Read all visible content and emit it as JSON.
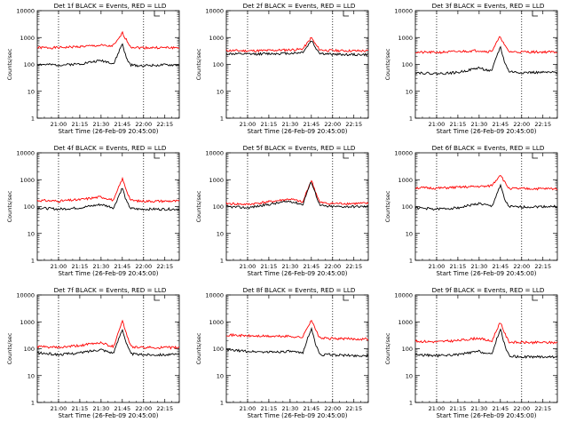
{
  "chart_data": [
    {
      "type": "line",
      "title": "Det 1f BLACK = Events, RED = LLD",
      "ylabel": "Counts/sec",
      "xlabel": "Start Time (26-Feb-09 20:45:00)",
      "x_ticks": [
        "21:00",
        "21:15",
        "21:30",
        "21:45",
        "22:00",
        "22:15"
      ],
      "y_ticks": [
        "1",
        "10",
        "100",
        "1000",
        "10000"
      ],
      "ylim": [
        1,
        10000
      ],
      "yscale": "log",
      "x_hours": [
        20.75,
        21.0,
        21.25,
        21.5,
        21.6,
        21.65,
        21.7,
        21.75,
        21.8,
        21.85,
        21.95,
        22.25,
        22.42
      ],
      "vlines_hours": [
        21.0,
        22.0
      ],
      "series": [
        {
          "color": "#ff0000",
          "values": [
            420,
            420,
            460,
            510,
            470,
            520,
            800,
            1500,
            800,
            450,
            420,
            420,
            420
          ]
        },
        {
          "color": "#000000",
          "values": [
            100,
            95,
            105,
            140,
            120,
            105,
            250,
            600,
            160,
            95,
            90,
            95,
            95
          ]
        }
      ]
    },
    {
      "type": "line",
      "title": "Det 2f BLACK = Events, RED = LLD",
      "ylabel": "Counts/sec",
      "xlabel": "Start Time (26-Feb-09 20:45:00)",
      "x_ticks": [
        "21:00",
        "21:15",
        "21:30",
        "21:45",
        "22:00",
        "22:15"
      ],
      "y_ticks": [
        "1",
        "10",
        "100",
        "1000",
        "10000"
      ],
      "ylim": [
        1,
        10000
      ],
      "yscale": "log",
      "x_hours": [
        20.75,
        21.0,
        21.25,
        21.5,
        21.6,
        21.65,
        21.7,
        21.75,
        21.8,
        21.85,
        21.95,
        22.25,
        22.42
      ],
      "vlines_hours": [
        21.0,
        22.0
      ],
      "series": [
        {
          "color": "#ff0000",
          "values": [
            330,
            320,
            330,
            350,
            360,
            380,
            600,
            1000,
            550,
            350,
            330,
            320,
            320
          ]
        },
        {
          "color": "#000000",
          "values": [
            250,
            240,
            250,
            260,
            270,
            290,
            450,
            800,
            420,
            260,
            240,
            230,
            230
          ]
        }
      ]
    },
    {
      "type": "line",
      "title": "Det 3f BLACK = Events, RED = LLD",
      "ylabel": "Counts/sec",
      "xlabel": "Start Time (26-Feb-09 20:45:00)",
      "x_ticks": [
        "21:00",
        "21:15",
        "21:30",
        "21:45",
        "22:00",
        "22:15"
      ],
      "y_ticks": [
        "1",
        "10",
        "100",
        "1000",
        "10000"
      ],
      "ylim": [
        1,
        10000
      ],
      "yscale": "log",
      "x_hours": [
        20.75,
        21.0,
        21.25,
        21.5,
        21.6,
        21.65,
        21.7,
        21.75,
        21.8,
        21.85,
        21.95,
        22.25,
        22.42
      ],
      "vlines_hours": [
        21.0,
        22.0
      ],
      "series": [
        {
          "color": "#ff0000",
          "values": [
            280,
            280,
            300,
            330,
            300,
            320,
            600,
            1100,
            500,
            300,
            290,
            290,
            290
          ]
        },
        {
          "color": "#000000",
          "values": [
            50,
            45,
            50,
            75,
            60,
            55,
            180,
            450,
            120,
            55,
            50,
            50,
            50
          ]
        }
      ]
    },
    {
      "type": "line",
      "title": "Det 4f BLACK = Events, RED = LLD",
      "ylabel": "Counts/sec",
      "xlabel": "Start Time (26-Feb-09 20:45:00)",
      "x_ticks": [
        "21:00",
        "21:15",
        "21:30",
        "21:45",
        "22:00",
        "22:15"
      ],
      "y_ticks": [
        "1",
        "10",
        "100",
        "1000",
        "10000"
      ],
      "ylim": [
        1,
        10000
      ],
      "yscale": "log",
      "x_hours": [
        20.75,
        21.0,
        21.25,
        21.5,
        21.6,
        21.65,
        21.7,
        21.75,
        21.8,
        21.85,
        21.95,
        22.25,
        22.42
      ],
      "vlines_hours": [
        21.0,
        22.0
      ],
      "series": [
        {
          "color": "#ff0000",
          "values": [
            170,
            160,
            180,
            230,
            190,
            170,
            450,
            1100,
            400,
            170,
            160,
            160,
            160
          ]
        },
        {
          "color": "#000000",
          "values": [
            90,
            80,
            90,
            120,
            100,
            90,
            220,
            500,
            150,
            85,
            80,
            80,
            80
          ]
        }
      ]
    },
    {
      "type": "line",
      "title": "Det 5f BLACK = Events, RED = LLD",
      "ylabel": "Counts/sec",
      "xlabel": "Start Time (26-Feb-09 20:45:00)",
      "x_ticks": [
        "21:00",
        "21:15",
        "21:30",
        "21:45",
        "22:00",
        "22:15"
      ],
      "y_ticks": [
        "1",
        "10",
        "100",
        "1000",
        "10000"
      ],
      "ylim": [
        1,
        10000
      ],
      "yscale": "log",
      "x_hours": [
        20.75,
        21.0,
        21.25,
        21.5,
        21.6,
        21.65,
        21.7,
        21.75,
        21.8,
        21.85,
        21.95,
        22.25,
        22.42
      ],
      "vlines_hours": [
        21.0,
        22.0
      ],
      "series": [
        {
          "color": "#ff0000",
          "values": [
            130,
            120,
            150,
            190,
            160,
            140,
            400,
            950,
            350,
            140,
            130,
            130,
            130
          ]
        },
        {
          "color": "#000000",
          "values": [
            100,
            90,
            120,
            160,
            130,
            120,
            350,
            850,
            300,
            110,
            100,
            100,
            100
          ]
        }
      ]
    },
    {
      "type": "line",
      "title": "Det 6f BLACK = Events, RED = LLD",
      "ylabel": "Counts/sec",
      "xlabel": "Start Time (26-Feb-09 20:45:00)",
      "x_ticks": [
        "21:00",
        "21:15",
        "21:30",
        "21:45",
        "22:00",
        "22:15"
      ],
      "y_ticks": [
        "1",
        "10",
        "100",
        "1000",
        "10000"
      ],
      "ylim": [
        1,
        10000
      ],
      "yscale": "log",
      "x_hours": [
        20.75,
        21.0,
        21.25,
        21.5,
        21.6,
        21.65,
        21.7,
        21.75,
        21.8,
        21.85,
        21.95,
        22.25,
        22.42
      ],
      "vlines_hours": [
        21.0,
        22.0
      ],
      "series": [
        {
          "color": "#ff0000",
          "values": [
            500,
            480,
            520,
            560,
            560,
            620,
            950,
            1600,
            800,
            480,
            460,
            460,
            460
          ]
        },
        {
          "color": "#000000",
          "values": [
            90,
            80,
            90,
            130,
            110,
            100,
            250,
            650,
            180,
            100,
            95,
            100,
            100
          ]
        }
      ]
    },
    {
      "type": "line",
      "title": "Det 7f BLACK = Events, RED = LLD",
      "ylabel": "Counts/sec",
      "xlabel": "Start Time (26-Feb-09 20:45:00)",
      "x_ticks": [
        "21:00",
        "21:15",
        "21:30",
        "21:45",
        "22:00",
        "22:15"
      ],
      "y_ticks": [
        "1",
        "10",
        "100",
        "1000",
        "10000"
      ],
      "ylim": [
        1,
        10000
      ],
      "yscale": "log",
      "x_hours": [
        20.75,
        21.0,
        21.25,
        21.5,
        21.6,
        21.65,
        21.7,
        21.75,
        21.8,
        21.85,
        21.95,
        22.25,
        22.42
      ],
      "vlines_hours": [
        21.0,
        22.0
      ],
      "series": [
        {
          "color": "#ff0000",
          "values": [
            120,
            110,
            130,
            170,
            130,
            120,
            400,
            1100,
            350,
            120,
            110,
            110,
            110
          ]
        },
        {
          "color": "#000000",
          "values": [
            70,
            60,
            70,
            95,
            75,
            70,
            200,
            550,
            150,
            65,
            60,
            60,
            60
          ]
        }
      ]
    },
    {
      "type": "line",
      "title": "Det 8f BLACK = Events, RED = LLD",
      "ylabel": "Counts/sec",
      "xlabel": "Start Time (26-Feb-09 20:45:00)",
      "x_ticks": [
        "21:00",
        "21:15",
        "21:30",
        "21:45",
        "22:00",
        "22:15"
      ],
      "y_ticks": [
        "1",
        "10",
        "100",
        "1000",
        "10000"
      ],
      "ylim": [
        1,
        10000
      ],
      "yscale": "log",
      "x_hours": [
        20.75,
        21.0,
        21.25,
        21.5,
        21.6,
        21.65,
        21.7,
        21.75,
        21.8,
        21.85,
        21.95,
        22.25,
        22.42
      ],
      "vlines_hours": [
        21.0,
        22.0
      ],
      "series": [
        {
          "color": "#ff0000",
          "values": [
            330,
            300,
            290,
            290,
            270,
            270,
            600,
            1200,
            500,
            250,
            240,
            230,
            230
          ]
        },
        {
          "color": "#000000",
          "values": [
            90,
            80,
            75,
            80,
            70,
            70,
            220,
            550,
            150,
            60,
            60,
            55,
            55
          ]
        }
      ]
    },
    {
      "type": "line",
      "title": "Det 9f BLACK = Events, RED = LLD",
      "ylabel": "Counts/sec",
      "xlabel": "Start Time (26-Feb-09 20:45:00)",
      "x_ticks": [
        "21:00",
        "21:15",
        "21:30",
        "21:45",
        "22:00",
        "22:15"
      ],
      "y_ticks": [
        "1",
        "10",
        "100",
        "1000",
        "10000"
      ],
      "ylim": [
        1,
        10000
      ],
      "yscale": "log",
      "x_hours": [
        20.75,
        21.0,
        21.25,
        21.5,
        21.6,
        21.65,
        21.7,
        21.75,
        21.8,
        21.85,
        21.95,
        22.25,
        22.42
      ],
      "vlines_hours": [
        21.0,
        22.0
      ],
      "series": [
        {
          "color": "#ff0000",
          "values": [
            190,
            180,
            200,
            250,
            200,
            190,
            450,
            1000,
            380,
            180,
            170,
            170,
            170
          ]
        },
        {
          "color": "#000000",
          "values": [
            60,
            55,
            60,
            80,
            65,
            60,
            200,
            550,
            140,
            55,
            50,
            50,
            50
          ]
        }
      ]
    }
  ]
}
